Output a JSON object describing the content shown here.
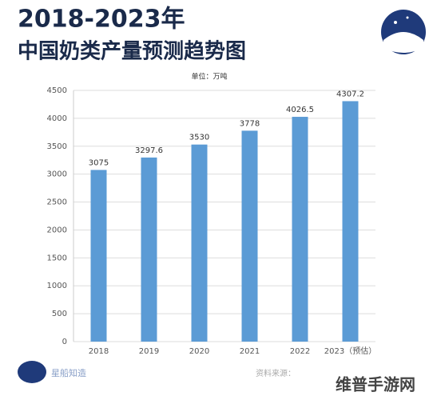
{
  "chart_data": {
    "type": "bar",
    "title": "2018-2023年",
    "subtitle": "中国奶类产量预测趋势图",
    "unit": "单位：万吨",
    "categories": [
      "2018",
      "2019",
      "2020",
      "2021",
      "2022",
      "2023（预估）"
    ],
    "values": [
      3075,
      3297.6,
      3530,
      3778,
      4026.5,
      4307.2
    ],
    "color": "#5b9bd5",
    "ylim": [
      0,
      4500
    ],
    "yticks": [
      0,
      500,
      1000,
      1500,
      2000,
      2500,
      3000,
      3500,
      4000,
      4500
    ],
    "grid": true,
    "brand": "星船知造",
    "source": "资料来源：",
    "watermark": "维普手游网"
  }
}
